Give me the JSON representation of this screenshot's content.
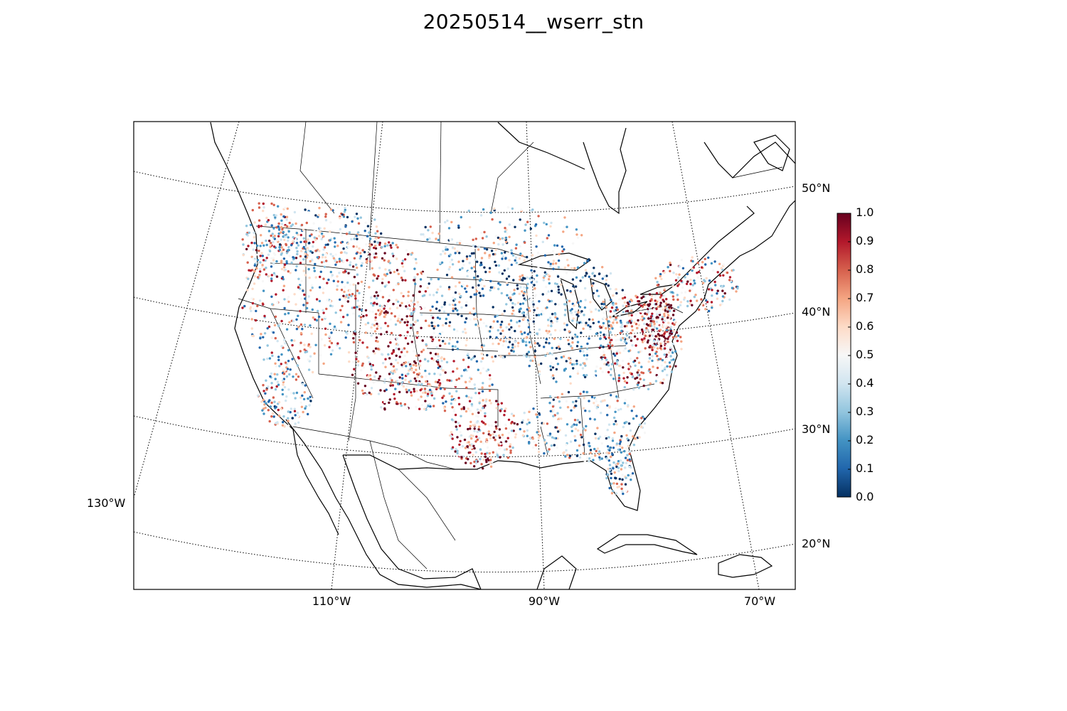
{
  "title": "20250514__wserr_stn",
  "map": {
    "projection": "lambert-conformal",
    "region": "CONUS",
    "lat_labels": [
      "50°N",
      "40°N",
      "30°N",
      "20°N"
    ],
    "lon_labels": [
      "130°W",
      "110°W",
      "90°W",
      "70°W"
    ],
    "marker": "station-dot"
  },
  "colorbar": {
    "colormap": "RdBu_r",
    "min": 0.0,
    "max": 1.0,
    "ticks": [
      "0.0",
      "0.1",
      "0.2",
      "0.3",
      "0.4",
      "0.5",
      "0.6",
      "0.7",
      "0.8",
      "0.9",
      "1.0"
    ],
    "low_color": "#053061",
    "mid_color": "#f7f7f7",
    "high_color": "#67001f"
  }
}
